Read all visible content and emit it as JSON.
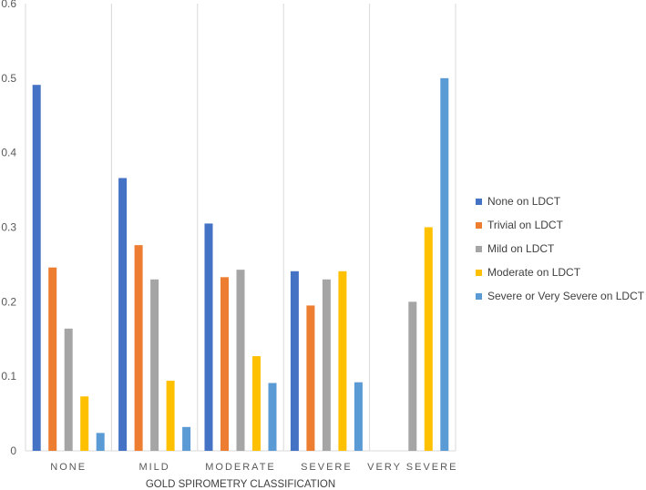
{
  "chart_data": {
    "type": "bar",
    "categories": [
      "NONE",
      "MILD",
      "MODERATE",
      "SEVERE",
      "VERY SEVERE"
    ],
    "series": [
      {
        "name": "None on LDCT",
        "color": "#4472C4",
        "values": [
          0.491,
          0.366,
          0.305,
          0.241,
          0
        ]
      },
      {
        "name": "Trivial on LDCT",
        "color": "#ED7D31",
        "values": [
          0.246,
          0.276,
          0.233,
          0.195,
          0
        ]
      },
      {
        "name": "Mild on LDCT",
        "color": "#A5A5A5",
        "values": [
          0.164,
          0.23,
          0.243,
          0.23,
          0.2
        ]
      },
      {
        "name": "Moderate on LDCT",
        "color": "#FFC000",
        "values": [
          0.073,
          0.094,
          0.127,
          0.241,
          0.3
        ]
      },
      {
        "name": "Severe or Very Severe on LDCT",
        "color": "#5B9BD5",
        "values": [
          0.024,
          0.032,
          0.091,
          0.092,
          0.5
        ]
      }
    ],
    "xlabel": "GOLD SPIROMETRY CLASSIFICATION",
    "ylabel": "",
    "ylim": [
      0,
      0.6
    ],
    "yticks": [
      "0",
      "0.1",
      "0.2",
      "0.3",
      "0.4",
      "0.5",
      "0.6"
    ],
    "grid": "vertical category separators",
    "legend_position": "right"
  }
}
